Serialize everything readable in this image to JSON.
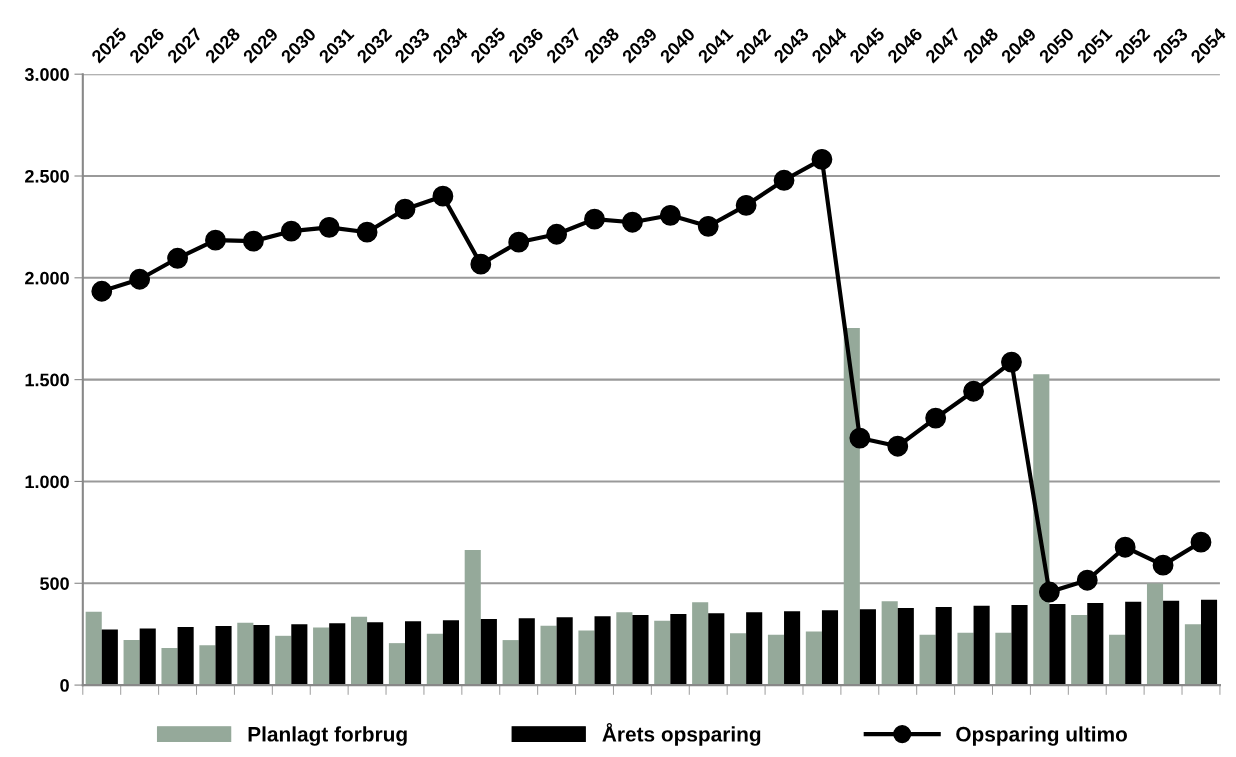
{
  "chart_data": {
    "type": "bar",
    "categories": [
      "2025",
      "2026",
      "2027",
      "2028",
      "2029",
      "2030",
      "2031",
      "2032",
      "2033",
      "2034",
      "2035",
      "2036",
      "2037",
      "2038",
      "2039",
      "2040",
      "2041",
      "2042",
      "2043",
      "2044",
      "2045",
      "2046",
      "2047",
      "2048",
      "2049",
      "2050",
      "2051",
      "2052",
      "2053",
      "2054"
    ],
    "series": [
      {
        "name": "Planlagt forbrug",
        "color": "#95a99a",
        "values": [
          360,
          221,
          182,
          196,
          306,
          242,
          283,
          335,
          206,
          252,
          663,
          221,
          291,
          268,
          358,
          316,
          407,
          255,
          247,
          263,
          1753,
          412,
          247,
          257,
          257,
          1527,
          344,
          247,
          499,
          299
        ]
      },
      {
        "name": "Årets opsparing",
        "color": "#000000",
        "values": [
          273,
          278,
          285,
          290,
          295,
          299,
          304,
          309,
          314,
          319,
          324,
          328,
          333,
          338,
          344,
          349,
          353,
          358,
          363,
          368,
          373,
          378,
          383,
          389,
          393,
          398,
          403,
          409,
          414,
          419
        ]
      },
      {
        "name": "Opsparing ultimo",
        "type": "line",
        "color": "#000000",
        "marker": "circle",
        "values": [
          1934,
          1993,
          2096,
          2185,
          2180,
          2229,
          2248,
          2224,
          2337,
          2401,
          2067,
          2175,
          2214,
          2288,
          2273,
          2307,
          2253,
          2356,
          2479,
          2582,
          1213,
          1173,
          1311,
          1443,
          1586,
          457,
          515,
          677,
          589,
          702
        ]
      }
    ],
    "ylim": [
      0,
      3000
    ],
    "yticks": [
      {
        "value": 0,
        "label": "0"
      },
      {
        "value": 500,
        "label": "500"
      },
      {
        "value": 1000,
        "label": "1.000"
      },
      {
        "value": 1500,
        "label": "1.500"
      },
      {
        "value": 2000,
        "label": "2.000"
      },
      {
        "value": 2500,
        "label": "2.500"
      },
      {
        "value": 3000,
        "label": "3.000"
      }
    ],
    "grid": "y",
    "legend": "bottom"
  }
}
